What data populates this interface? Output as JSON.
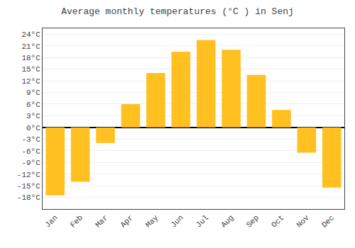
{
  "chart_data": {
    "type": "bar",
    "title": "Average monthly temperatures (°C ) in Senj",
    "categories": [
      "Jan",
      "Feb",
      "Mar",
      "Apr",
      "May",
      "Jun",
      "Jul",
      "Aug",
      "Sep",
      "Oct",
      "Nov",
      "Dec"
    ],
    "values": [
      -17.5,
      -14.0,
      -4.0,
      6.0,
      14.0,
      19.5,
      22.5,
      20.0,
      13.5,
      4.5,
      -6.5,
      -15.5
    ],
    "color": "#FFC020",
    "ylim": [
      -21,
      25.5
    ],
    "yticks": [
      {
        "value": -18,
        "label": "-18°C"
      },
      {
        "value": -15,
        "label": "-15°C"
      },
      {
        "value": -12,
        "label": "-12°C"
      },
      {
        "value": -9,
        "label": "-9°C"
      },
      {
        "value": -6,
        "label": "-6°C"
      },
      {
        "value": -3,
        "label": "-3°C"
      },
      {
        "value": 0,
        "label": "0°C"
      },
      {
        "value": 3,
        "label": "3°C"
      },
      {
        "value": 6,
        "label": "6°C"
      },
      {
        "value": 9,
        "label": "9°C"
      },
      {
        "value": 12,
        "label": "12°C"
      },
      {
        "value": 15,
        "label": "15°C"
      },
      {
        "value": 18,
        "label": "18°C"
      },
      {
        "value": 21,
        "label": "21°C"
      },
      {
        "value": 24,
        "label": "24°C"
      }
    ],
    "grid": true
  }
}
